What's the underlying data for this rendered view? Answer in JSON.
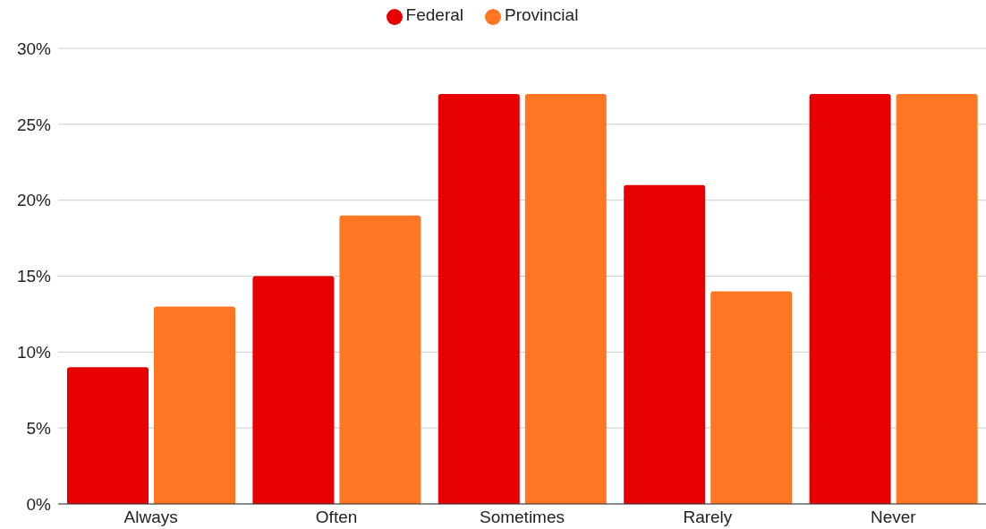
{
  "chart_data": {
    "type": "bar",
    "categories": [
      "Always",
      "Often",
      "Sometimes",
      "Rarely",
      "Never"
    ],
    "series": [
      {
        "name": "Federal",
        "color": "#e60000",
        "values": [
          9,
          15,
          27,
          21,
          27
        ]
      },
      {
        "name": "Provincial",
        "color": "#ff7722",
        "values": [
          13,
          19,
          27,
          14,
          27
        ]
      }
    ],
    "ylim": [
      0,
      30
    ],
    "yticks": [
      {
        "value": 0,
        "label": "0%"
      },
      {
        "value": 5,
        "label": "5%"
      },
      {
        "value": 10,
        "label": "10%"
      },
      {
        "value": 15,
        "label": "15%"
      },
      {
        "value": 20,
        "label": "20%"
      },
      {
        "value": 25,
        "label": "25%"
      },
      {
        "value": 30,
        "label": "30%"
      }
    ],
    "grid": "y",
    "legend": "top"
  }
}
